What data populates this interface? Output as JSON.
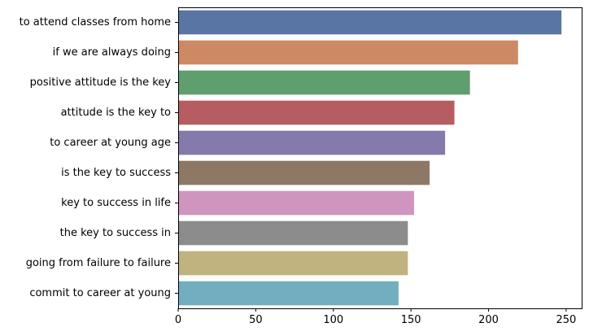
{
  "chart_data": {
    "type": "bar",
    "orientation": "horizontal",
    "title": "",
    "xlabel": "",
    "ylabel": "",
    "xlim": [
      0,
      260
    ],
    "x_ticks": [
      0,
      50,
      100,
      150,
      200,
      250
    ],
    "grid": false,
    "categories": [
      "to attend classes from home",
      "if we are always doing",
      "positive attitude is the key",
      "attitude is the key to",
      "to career at young age",
      "is the key to success",
      "key to success in life",
      "the key to success in",
      "going from failure to failure",
      "commit to career at young"
    ],
    "values": [
      247,
      219,
      188,
      178,
      172,
      162,
      152,
      148,
      148,
      142
    ],
    "colors": [
      "#5975a4",
      "#cc8963",
      "#5f9e6e",
      "#b55d60",
      "#857aab",
      "#8d7866",
      "#d095bf",
      "#8c8c8c",
      "#c1b37f",
      "#71aec0"
    ]
  }
}
